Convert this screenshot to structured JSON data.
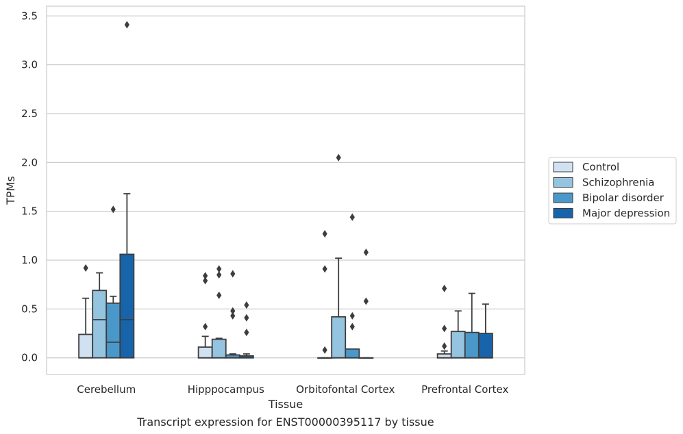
{
  "caption": "Transcript expression for ENST00000395117 by tissue",
  "chart_data": {
    "type": "box",
    "xlabel": "Tissue",
    "ylabel": "TPMs",
    "ylim": [
      -0.17,
      3.6
    ],
    "yticks": [
      "0.0",
      "0.5",
      "1.0",
      "1.5",
      "2.0",
      "2.5",
      "3.0",
      "3.5"
    ],
    "grid": "horizontal",
    "legend_position": "right",
    "categories": [
      "Cerebellum",
      "Hipppocampus",
      "Orbitofontal Cortex",
      "Prefrontal Cortex"
    ],
    "series": [
      {
        "name": "Control",
        "color": "#d0e1f2",
        "boxes": [
          {
            "min": 0.0,
            "q1": 0.0,
            "median": 0.0,
            "q3": 0.24,
            "max": 0.61,
            "outliers": [
              0.92
            ]
          },
          {
            "min": 0.0,
            "q1": 0.0,
            "median": 0.0,
            "q3": 0.11,
            "max": 0.22,
            "outliers": [
              0.32,
              0.79,
              0.84
            ]
          },
          {
            "min": 0.0,
            "q1": 0.0,
            "median": 0.0,
            "q3": 0.0,
            "max": 0.0,
            "outliers": [
              0.08,
              0.91,
              1.27
            ]
          },
          {
            "min": 0.0,
            "q1": 0.0,
            "median": 0.0,
            "q3": 0.04,
            "max": 0.07,
            "outliers": [
              0.12,
              0.3,
              0.71
            ]
          }
        ]
      },
      {
        "name": "Schizophrenia",
        "color": "#94c4df",
        "boxes": [
          {
            "min": 0.0,
            "q1": 0.0,
            "median": 0.39,
            "q3": 0.69,
            "max": 0.87,
            "outliers": []
          },
          {
            "min": 0.0,
            "q1": 0.0,
            "median": 0.0,
            "q3": 0.19,
            "max": 0.2,
            "outliers": [
              0.64,
              0.85,
              0.91
            ]
          },
          {
            "min": 0.0,
            "q1": 0.0,
            "median": 0.0,
            "q3": 0.42,
            "max": 1.02,
            "outliers": [
              2.05
            ]
          },
          {
            "min": 0.0,
            "q1": 0.0,
            "median": 0.0,
            "q3": 0.27,
            "max": 0.48,
            "outliers": []
          }
        ]
      },
      {
        "name": "Bipolar disorder",
        "color": "#4a98c9",
        "boxes": [
          {
            "min": 0.0,
            "q1": 0.0,
            "median": 0.16,
            "q3": 0.56,
            "max": 0.63,
            "outliers": [
              1.52
            ]
          },
          {
            "min": 0.0,
            "q1": 0.0,
            "median": 0.0,
            "q3": 0.03,
            "max": 0.04,
            "outliers": [
              0.43,
              0.48,
              0.86
            ]
          },
          {
            "min": 0.0,
            "q1": 0.0,
            "median": 0.0,
            "q3": 0.09,
            "max": 0.09,
            "outliers": [
              0.32,
              0.43,
              1.44
            ]
          },
          {
            "min": 0.0,
            "q1": 0.0,
            "median": 0.0,
            "q3": 0.26,
            "max": 0.66,
            "outliers": []
          }
        ]
      },
      {
        "name": "Major depression",
        "color": "#1764ab",
        "boxes": [
          {
            "min": 0.0,
            "q1": 0.0,
            "median": 0.39,
            "q3": 1.06,
            "max": 1.68,
            "outliers": [
              3.41
            ]
          },
          {
            "min": 0.0,
            "q1": 0.0,
            "median": 0.0,
            "q3": 0.02,
            "max": 0.04,
            "outliers": [
              0.26,
              0.41,
              0.54
            ]
          },
          {
            "min": 0.0,
            "q1": 0.0,
            "median": 0.0,
            "q3": 0.0,
            "max": 0.0,
            "outliers": [
              0.58,
              1.08
            ]
          },
          {
            "min": 0.0,
            "q1": 0.0,
            "median": 0.0,
            "q3": 0.25,
            "max": 0.55,
            "outliers": []
          }
        ]
      }
    ]
  }
}
